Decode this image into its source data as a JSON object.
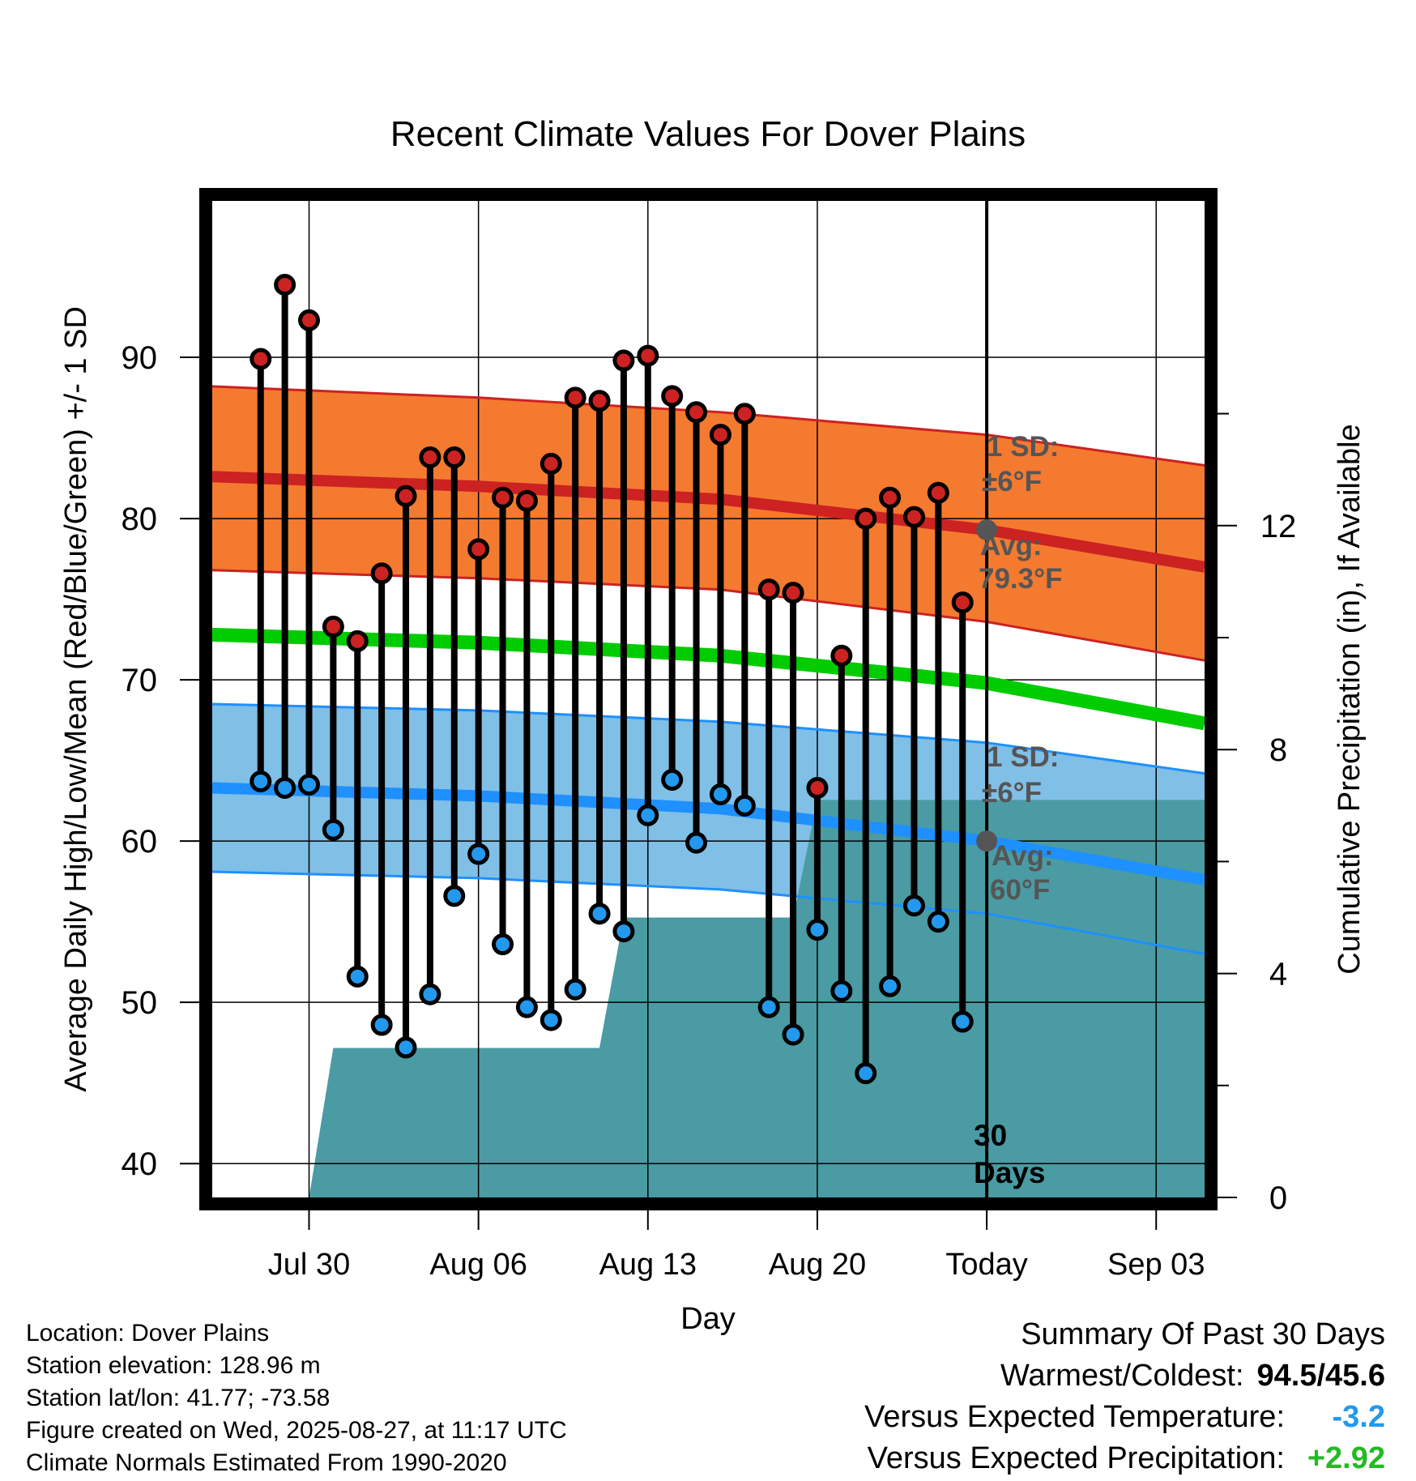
{
  "chart_data": {
    "type": "line",
    "title": "Recent Climate Values For Dover Plains",
    "xlabel": "Day",
    "ylabel": "Average Daily High/Low/Mean (Red/Blue/Green) +/- 1 SD",
    "ylabel_right": "Cumulative Precipitation (in), If Available",
    "x_ticks": [
      "Jul 30",
      "Aug 06",
      "Aug 13",
      "Aug 20",
      "Today",
      "Sep 03"
    ],
    "x_range": [
      "2025-07-26",
      "2025-09-05"
    ],
    "today": "2025-08-27",
    "ylim": [
      37.9,
      99.7
    ],
    "y_ticks": [
      40,
      50,
      60,
      70,
      80,
      90
    ],
    "y2_range": [
      0,
      17.8
    ],
    "y2_ticks": [
      0,
      4,
      8,
      12
    ],
    "grid": true,
    "dates": [
      "2025-07-28",
      "2025-07-29",
      "2025-07-30",
      "2025-07-31",
      "2025-08-01",
      "2025-08-02",
      "2025-08-03",
      "2025-08-04",
      "2025-08-05",
      "2025-08-06",
      "2025-08-07",
      "2025-08-08",
      "2025-08-09",
      "2025-08-10",
      "2025-08-11",
      "2025-08-12",
      "2025-08-13",
      "2025-08-14",
      "2025-08-15",
      "2025-08-16",
      "2025-08-17",
      "2025-08-18",
      "2025-08-19",
      "2025-08-20",
      "2025-08-21",
      "2025-08-22",
      "2025-08-23",
      "2025-08-24",
      "2025-08-25",
      "2025-08-26"
    ],
    "series": [
      {
        "name": "High",
        "color": "#cc2222",
        "values": [
          89.9,
          94.5,
          92.3,
          73.3,
          72.4,
          76.6,
          81.4,
          83.8,
          83.8,
          78.1,
          81.3,
          81.1,
          83.4,
          87.5,
          87.3,
          89.8,
          90.1,
          87.6,
          86.6,
          85.2,
          86.5,
          75.6,
          75.4,
          63.3,
          71.5,
          80.0,
          81.3,
          80.1,
          81.6,
          74.8
        ]
      },
      {
        "name": "Low",
        "color": "#2299ee",
        "values": [
          63.7,
          63.3,
          63.5,
          60.7,
          51.6,
          48.6,
          47.2,
          50.5,
          56.6,
          59.2,
          53.6,
          49.7,
          48.9,
          50.8,
          55.5,
          54.4,
          61.6,
          63.8,
          59.9,
          62.9,
          62.2,
          49.7,
          48.0,
          54.5,
          50.7,
          45.6,
          51.0,
          56.0,
          55.0,
          48.8
        ]
      }
    ],
    "normals": {
      "x": [
        "2025-07-26",
        "2025-08-06",
        "2025-08-16",
        "2025-08-27",
        "2025-09-05"
      ],
      "high_mean": [
        82.6,
        82.0,
        81.2,
        79.3,
        77.0
      ],
      "high_upper": [
        88.2,
        87.5,
        86.6,
        85.2,
        83.3
      ],
      "high_lower": [
        76.8,
        76.3,
        75.6,
        73.6,
        71.2
      ],
      "mean": [
        72.8,
        72.3,
        71.5,
        69.8,
        67.3
      ],
      "low_mean": [
        63.3,
        62.8,
        62.0,
        60.0,
        57.6
      ],
      "low_upper": [
        68.5,
        68.1,
        67.4,
        66.1,
        64.2
      ],
      "low_lower": [
        58.1,
        57.7,
        57.0,
        55.5,
        53.0
      ]
    },
    "precip": {
      "x": [
        "2025-07-30",
        "2025-07-31",
        "2025-08-11",
        "2025-08-12",
        "2025-08-19",
        "2025-08-20",
        "2025-09-05"
      ],
      "values": [
        0.0,
        2.67,
        2.67,
        5.0,
        5.0,
        7.1,
        7.1
      ]
    },
    "annotations": {
      "high_sd_1": "1 SD:",
      "high_sd_2": "±6°F",
      "high_avg_1": "Avg:",
      "high_avg_2": "79.3°F",
      "low_sd_1": "1 SD:",
      "low_sd_2": "±6°F",
      "low_avg_1": "Avg:",
      "low_avg_2": "60°F",
      "days_1": "30",
      "days_2": "Days"
    },
    "colors": {
      "high_band": "#f47a30",
      "high_line": "#cc2222",
      "low_band": "#80bfe6",
      "low_line": "#1e90ff",
      "mean_line": "#00cc00",
      "precip": "#4a9ba3",
      "annotation": "#555555"
    }
  },
  "info": {
    "location": "Location: Dover Plains",
    "elevation": "Station elevation: 128.96 m",
    "latlon": "Station lat/lon: 41.77; -73.58",
    "created": "Figure created on Wed, 2025-08-27, at 11:17 UTC",
    "normals": "Climate Normals Estimated From 1990-2020"
  },
  "summary": {
    "title": "Summary Of Past 30 Days",
    "warm_label": "Warmest/Coldest:",
    "warm_value": "94.5/45.6",
    "temp_label": "Versus Expected Temperature:",
    "temp_value": "-3.2",
    "temp_color": "#2299ee",
    "precip_label": "Versus Expected Precipitation:",
    "precip_value": "+2.92",
    "precip_color": "#22bb22"
  }
}
